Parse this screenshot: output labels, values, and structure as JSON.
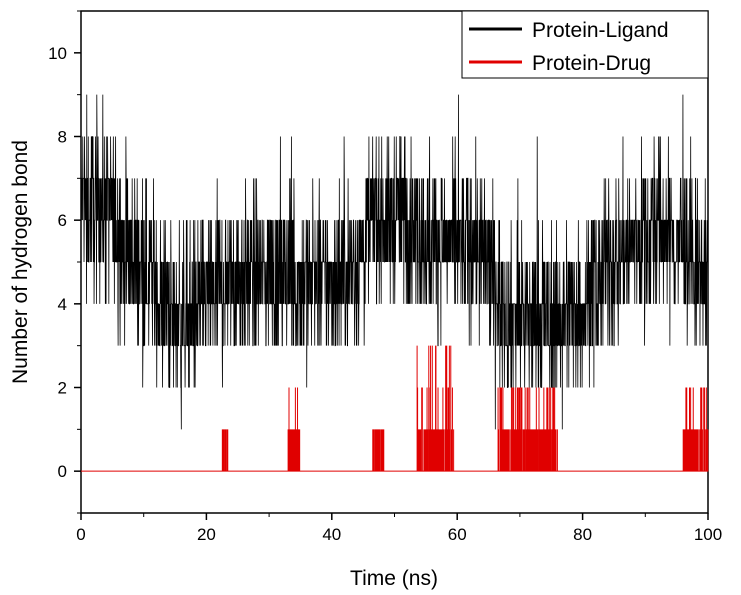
{
  "chart_data": {
    "type": "line",
    "title": "",
    "xlabel": "Time (ns)",
    "ylabel": "Number of hydrogen bond",
    "xlim": [
      0,
      100
    ],
    "ylim": [
      -1,
      11
    ],
    "xticks": [
      0,
      20,
      40,
      60,
      80,
      100
    ],
    "yticks": [
      0,
      2,
      4,
      6,
      8,
      10
    ],
    "xtick_labels": [
      "0",
      "20",
      "40",
      "60",
      "80",
      "100"
    ],
    "ytick_labels": [
      "0",
      "2",
      "4",
      "6",
      "8",
      "10"
    ],
    "grid": false,
    "legend_position": "top-right",
    "series": [
      {
        "name": "Protein-Ligand",
        "color": "#000000",
        "style": "rapid fluctuating trace (step)",
        "baseline": [
          [
            0,
            6.5
          ],
          [
            5,
            6.2
          ],
          [
            7,
            5.3
          ],
          [
            10,
            5.0
          ],
          [
            12,
            4.3
          ],
          [
            15,
            3.6
          ],
          [
            20,
            4.2
          ],
          [
            25,
            4.6
          ],
          [
            30,
            4.7
          ],
          [
            35,
            4.6
          ],
          [
            40,
            4.5
          ],
          [
            44,
            5.0
          ],
          [
            47,
            6.2
          ],
          [
            52,
            6.0
          ],
          [
            55,
            5.6
          ],
          [
            60,
            5.3
          ],
          [
            63,
            5.4
          ],
          [
            65,
            4.8
          ],
          [
            68,
            3.8
          ],
          [
            72,
            3.6
          ],
          [
            76,
            3.7
          ],
          [
            80,
            4.0
          ],
          [
            84,
            4.9
          ],
          [
            88,
            5.5
          ],
          [
            92,
            5.9
          ],
          [
            96,
            5.4
          ],
          [
            100,
            4.5
          ]
        ],
        "range_min": 1,
        "range_max": 10
      },
      {
        "name": "Protein-Drug",
        "color": "#e00000",
        "style": "mostly zero with intermittent spikes",
        "baseline_value": 0,
        "spike_regions": [
          {
            "x": [
              22.5,
              23.5
            ],
            "max": 1
          },
          {
            "x": [
              33,
              35
            ],
            "max": 2
          },
          {
            "x": [
              46.5,
              48.5
            ],
            "max": 1
          },
          {
            "x": [
              53.5,
              59.5
            ],
            "max": 3
          },
          {
            "x": [
              66.5,
              76
            ],
            "max": 2
          },
          {
            "x": [
              96,
              100
            ],
            "max": 2
          }
        ]
      }
    ]
  }
}
